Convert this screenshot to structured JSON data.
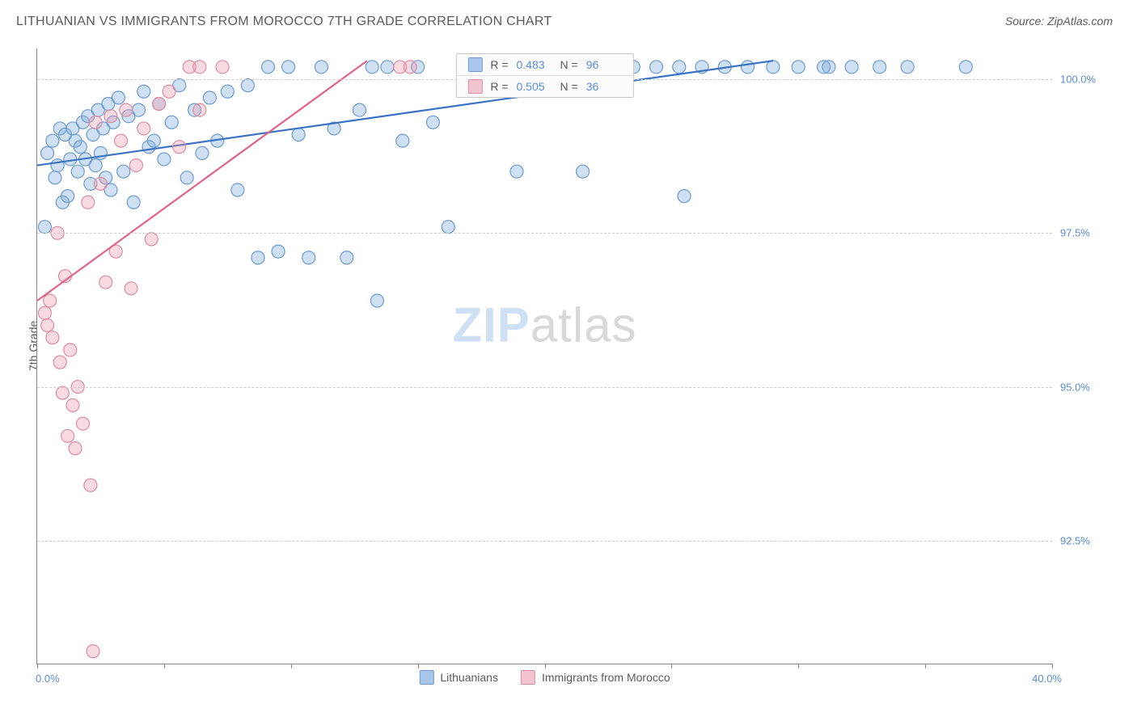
{
  "header": {
    "title": "LITHUANIAN VS IMMIGRANTS FROM MOROCCO 7TH GRADE CORRELATION CHART",
    "source": "Source: ZipAtlas.com"
  },
  "axes": {
    "y_label": "7th Grade",
    "x_min": 0.0,
    "x_max": 40.0,
    "x_min_label": "0.0%",
    "x_max_label": "40.0%",
    "y_min": 90.5,
    "y_max": 100.5,
    "y_gridlines": [
      92.5,
      95.0,
      97.5,
      100.0
    ],
    "y_tick_labels": [
      "92.5%",
      "95.0%",
      "97.5%",
      "100.0%"
    ],
    "x_tick_positions": [
      0,
      5,
      10,
      15,
      20,
      25,
      30,
      35,
      40
    ],
    "grid_color": "#cccccc",
    "axis_color": "#888888"
  },
  "watermark": {
    "part1": "ZIP",
    "part2": "atlas"
  },
  "series": [
    {
      "name": "Lithuanians",
      "label": "Lithuanians",
      "fill": "rgba(120,165,220,0.35)",
      "stroke": "#6b9bd1",
      "line_color": "#3b72c4",
      "marker_radius": 8,
      "r_label": "R =",
      "r_value": "0.483",
      "n_label": "N =",
      "n_value": "96",
      "swatch_fill": "#a9c6ea",
      "swatch_border": "#6b9bd1",
      "trend": {
        "x1": 0.0,
        "y1": 98.6,
        "x2": 29.0,
        "y2": 100.3
      },
      "points": [
        [
          0.3,
          97.6
        ],
        [
          0.4,
          98.8
        ],
        [
          0.6,
          99.0
        ],
        [
          0.7,
          98.4
        ],
        [
          0.8,
          98.6
        ],
        [
          0.9,
          99.2
        ],
        [
          1.0,
          98.0
        ],
        [
          1.1,
          99.1
        ],
        [
          1.2,
          98.1
        ],
        [
          1.3,
          98.7
        ],
        [
          1.4,
          99.2
        ],
        [
          1.5,
          99.0
        ],
        [
          1.6,
          98.5
        ],
        [
          1.7,
          98.9
        ],
        [
          1.8,
          99.3
        ],
        [
          1.9,
          98.7
        ],
        [
          2.0,
          99.4
        ],
        [
          2.1,
          98.3
        ],
        [
          2.2,
          99.1
        ],
        [
          2.3,
          98.6
        ],
        [
          2.4,
          99.5
        ],
        [
          2.5,
          98.8
        ],
        [
          2.6,
          99.2
        ],
        [
          2.7,
          98.4
        ],
        [
          2.8,
          99.6
        ],
        [
          2.9,
          98.2
        ],
        [
          3.0,
          99.3
        ],
        [
          3.2,
          99.7
        ],
        [
          3.4,
          98.5
        ],
        [
          3.6,
          99.4
        ],
        [
          3.8,
          98.0
        ],
        [
          4.0,
          99.5
        ],
        [
          4.2,
          99.8
        ],
        [
          4.4,
          98.9
        ],
        [
          4.6,
          99.0
        ],
        [
          4.8,
          99.6
        ],
        [
          5.0,
          98.7
        ],
        [
          5.3,
          99.3
        ],
        [
          5.6,
          99.9
        ],
        [
          5.9,
          98.4
        ],
        [
          6.2,
          99.5
        ],
        [
          6.5,
          98.8
        ],
        [
          6.8,
          99.7
        ],
        [
          7.1,
          99.0
        ],
        [
          7.5,
          99.8
        ],
        [
          7.9,
          98.2
        ],
        [
          8.3,
          99.9
        ],
        [
          8.7,
          97.1
        ],
        [
          9.1,
          100.2
        ],
        [
          9.5,
          97.2
        ],
        [
          9.9,
          100.2
        ],
        [
          10.3,
          99.1
        ],
        [
          10.7,
          97.1
        ],
        [
          11.2,
          100.2
        ],
        [
          11.7,
          99.2
        ],
        [
          12.2,
          97.1
        ],
        [
          12.7,
          99.5
        ],
        [
          13.2,
          100.2
        ],
        [
          13.4,
          96.4
        ],
        [
          13.8,
          100.2
        ],
        [
          14.4,
          99.0
        ],
        [
          15.0,
          100.2
        ],
        [
          15.6,
          99.3
        ],
        [
          16.2,
          97.6
        ],
        [
          16.8,
          100.2
        ],
        [
          17.5,
          100.2
        ],
        [
          18.2,
          100.2
        ],
        [
          18.9,
          98.5
        ],
        [
          19.6,
          100.2
        ],
        [
          20.3,
          100.2
        ],
        [
          21.1,
          100.2
        ],
        [
          21.5,
          98.5
        ],
        [
          22.7,
          100.2
        ],
        [
          23.5,
          100.2
        ],
        [
          24.4,
          100.2
        ],
        [
          25.3,
          100.2
        ],
        [
          25.5,
          98.1
        ],
        [
          26.2,
          100.2
        ],
        [
          27.1,
          100.2
        ],
        [
          28.0,
          100.2
        ],
        [
          29.0,
          100.2
        ],
        [
          30.0,
          100.2
        ],
        [
          31.0,
          100.2
        ],
        [
          31.2,
          100.2
        ],
        [
          32.1,
          100.2
        ],
        [
          33.2,
          100.2
        ],
        [
          34.3,
          100.2
        ],
        [
          36.6,
          100.2
        ]
      ]
    },
    {
      "name": "Immigrants from Morocco",
      "label": "Immigrants from Morocco",
      "fill": "rgba(235,150,170,0.35)",
      "stroke": "#e08ba1",
      "line_color": "#e06388",
      "marker_radius": 8,
      "r_label": "R =",
      "r_value": "0.505",
      "n_label": "N =",
      "n_value": "36",
      "swatch_fill": "#f2c4d0",
      "swatch_border": "#e08ba1",
      "trend": {
        "x1": 0.0,
        "y1": 96.4,
        "x2": 13.0,
        "y2": 100.3
      },
      "points": [
        [
          0.3,
          96.2
        ],
        [
          0.4,
          96.0
        ],
        [
          0.5,
          96.4
        ],
        [
          0.6,
          95.8
        ],
        [
          0.8,
          97.5
        ],
        [
          0.9,
          95.4
        ],
        [
          1.0,
          94.9
        ],
        [
          1.1,
          96.8
        ],
        [
          1.2,
          94.2
        ],
        [
          1.3,
          95.6
        ],
        [
          1.4,
          94.7
        ],
        [
          1.5,
          94.0
        ],
        [
          1.6,
          95.0
        ],
        [
          1.8,
          94.4
        ],
        [
          2.0,
          98.0
        ],
        [
          2.1,
          93.4
        ],
        [
          2.3,
          99.3
        ],
        [
          2.5,
          98.3
        ],
        [
          2.7,
          96.7
        ],
        [
          2.9,
          99.4
        ],
        [
          3.1,
          97.2
        ],
        [
          3.3,
          99.0
        ],
        [
          3.5,
          99.5
        ],
        [
          3.7,
          96.6
        ],
        [
          3.9,
          98.6
        ],
        [
          4.2,
          99.2
        ],
        [
          4.5,
          97.4
        ],
        [
          4.8,
          99.6
        ],
        [
          5.2,
          99.8
        ],
        [
          5.6,
          98.9
        ],
        [
          6.0,
          100.2
        ],
        [
          6.4,
          100.2
        ],
        [
          6.4,
          99.5
        ],
        [
          7.3,
          100.2
        ],
        [
          14.3,
          100.2
        ],
        [
          14.7,
          100.2
        ],
        [
          2.2,
          90.7
        ]
      ]
    }
  ],
  "legend_bottom": {
    "items": [
      {
        "label": "Lithuanians",
        "swatch_fill": "#a9c6ea",
        "swatch_border": "#6b9bd1"
      },
      {
        "label": "Immigrants from Morocco",
        "swatch_fill": "#f2c4d0",
        "swatch_border": "#e08ba1"
      }
    ]
  }
}
